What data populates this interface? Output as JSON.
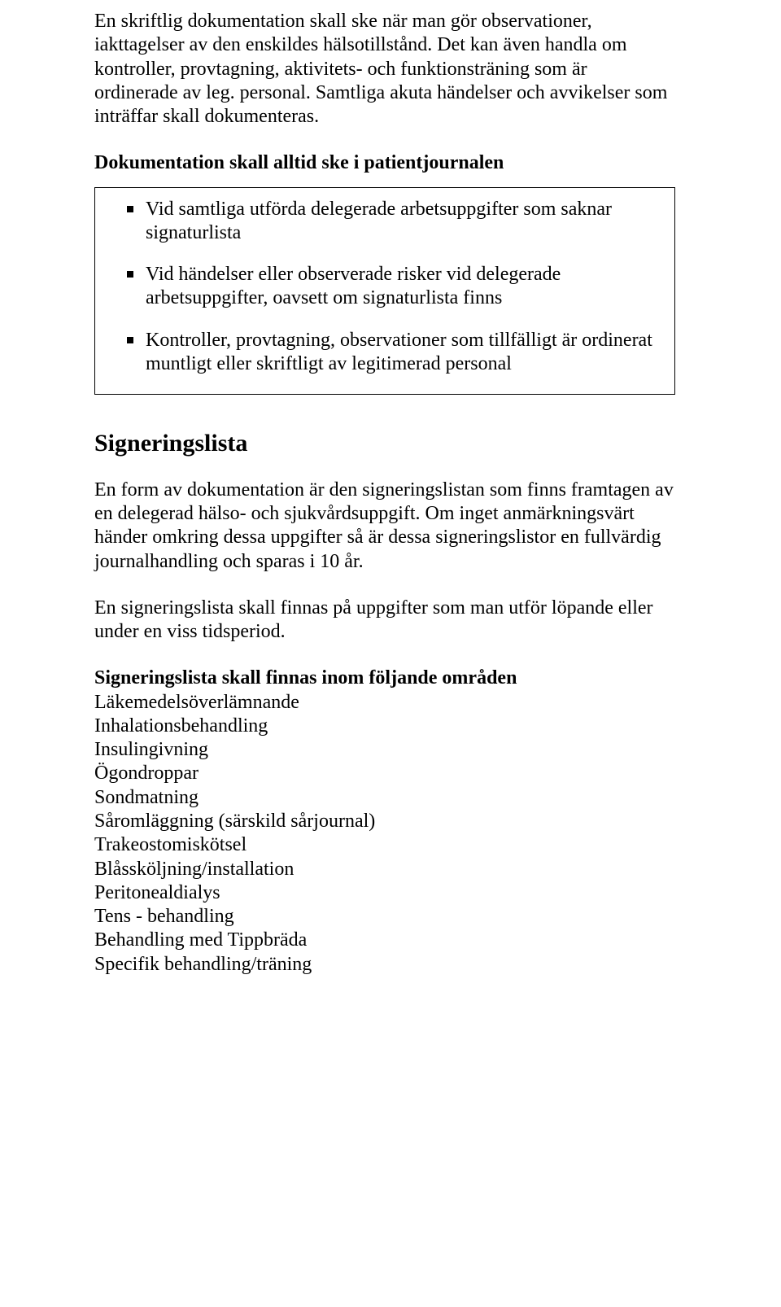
{
  "intro": {
    "p1": "En skriftlig dokumentation skall ske när man gör observationer, iakttagelser av den enskildes hälsotillstånd. Det kan även handla om kontroller, provtagning, aktivitets- och funktionsträning som är ordinerade av leg. personal. Samtliga akuta händelser och avvikelser som inträffar skall dokumenteras."
  },
  "box": {
    "heading": "Dokumentation skall alltid ske i patientjournalen",
    "items": [
      "Vid samtliga utförda delegerade arbetsuppgifter som saknar signaturlista",
      "Vid händelser eller observerade risker vid delegerade arbetsuppgifter, oavsett om signaturlista finns",
      "Kontroller, provtagning, observationer som tillfälligt är ordinerat muntligt eller skriftligt av legitimerad personal"
    ]
  },
  "signeringslista": {
    "heading": "Signeringslista",
    "p1": "En form av dokumentation är den signeringslistan som finns framtagen av en delegerad hälso- och sjukvårdsuppgift. Om inget anmärkningsvärt händer omkring dessa uppgifter så är dessa signeringslistor en fullvärdig journalhandling och sparas i 10 år.",
    "p2": "En signeringslista skall finnas på uppgifter som man utför löpande eller under en viss tidsperiod.",
    "subheading": "Signeringslista skall finnas inom följande områden",
    "items": [
      "Läkemedelsöverlämnande",
      "Inhalationsbehandling",
      "Insulingivning",
      "Ögondroppar",
      "Sondmatning",
      "Såromläggning (särskild sårjournal)",
      "Trakeostomiskötsel",
      "Blåssköljning/installation",
      "Peritonealdialys",
      "Tens - behandling",
      "Behandling med Tippbräda",
      "Specifik behandling/träning"
    ]
  }
}
